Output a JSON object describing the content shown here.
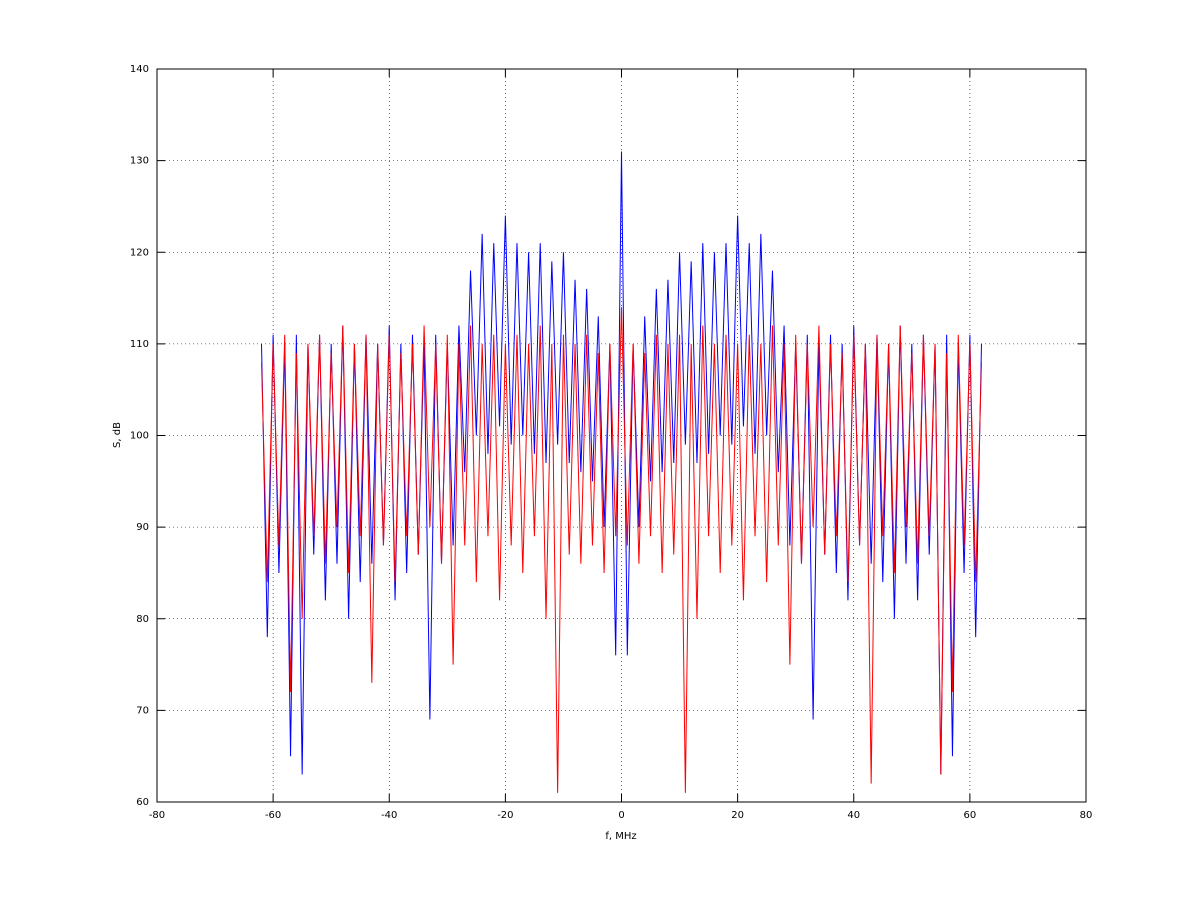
{
  "chart_data": {
    "type": "line",
    "xlabel": "f, MHz",
    "ylabel": "S, dB",
    "xlim": [
      -80,
      80
    ],
    "ylim": [
      60,
      140
    ],
    "xticks": [
      -80,
      -60,
      -40,
      -20,
      0,
      20,
      40,
      60,
      80
    ],
    "yticks": [
      60,
      70,
      80,
      90,
      100,
      110,
      120,
      130,
      140
    ],
    "grid": true,
    "x": [
      -62,
      -61,
      -60,
      -59,
      -58,
      -57,
      -56,
      -55,
      -54,
      -53,
      -52,
      -51,
      -50,
      -49,
      -48,
      -47,
      -46,
      -45,
      -44,
      -43,
      -42,
      -41,
      -40,
      -39,
      -38,
      -37,
      -36,
      -35,
      -34,
      -33,
      -32,
      -31,
      -30,
      -29,
      -28,
      -27,
      -26,
      -25,
      -24,
      -23,
      -22,
      -21,
      -20,
      -19,
      -18,
      -17,
      -16,
      -15,
      -14,
      -13,
      -12,
      -11,
      -10,
      -9,
      -8,
      -7,
      -6,
      -5,
      -4,
      -3,
      -2,
      -1,
      0,
      1,
      2,
      3,
      4,
      5,
      6,
      7,
      8,
      9,
      10,
      11,
      12,
      13,
      14,
      15,
      16,
      17,
      18,
      19,
      20,
      21,
      22,
      23,
      24,
      25,
      26,
      27,
      28,
      29,
      30,
      31,
      32,
      33,
      34,
      35,
      36,
      37,
      38,
      39,
      40,
      41,
      42,
      43,
      44,
      45,
      46,
      47,
      48,
      49,
      50,
      51,
      52,
      53,
      54,
      55,
      56,
      57,
      58,
      59,
      60,
      61,
      62
    ],
    "series": [
      {
        "color": "#0000ff",
        "values": [
          110,
          78,
          111,
          85,
          110,
          65,
          111,
          63,
          110,
          87,
          111,
          82,
          110,
          86,
          112,
          80,
          110,
          84,
          111,
          86,
          110,
          88,
          112,
          82,
          110,
          85,
          111,
          87,
          110,
          69,
          111,
          86,
          110,
          88,
          112,
          96,
          118,
          100,
          122,
          98,
          121,
          101,
          124,
          99,
          121,
          100,
          120,
          98,
          121,
          97,
          119,
          99,
          120,
          97,
          117,
          96,
          116,
          95,
          113,
          90,
          110,
          76,
          131,
          76,
          110,
          90,
          113,
          95,
          116,
          96,
          117,
          97,
          120,
          99,
          119,
          97,
          121,
          98,
          120,
          100,
          121,
          99,
          124,
          101,
          121,
          98,
          122,
          100,
          118,
          96,
          112,
          88,
          110,
          86,
          111,
          69,
          110,
          87,
          111,
          85,
          110,
          82,
          112,
          88,
          110,
          86,
          111,
          84,
          110,
          80,
          112,
          86,
          110,
          82,
          111,
          87,
          110,
          63,
          111,
          65,
          110,
          85,
          111,
          78,
          110
        ]
      },
      {
        "color": "#ff0000",
        "values": [
          108,
          84,
          110,
          88,
          111,
          72,
          109,
          80,
          110,
          89,
          111,
          86,
          109,
          90,
          112,
          85,
          110,
          89,
          111,
          73,
          110,
          88,
          111,
          84,
          109,
          89,
          110,
          87,
          112,
          90,
          110,
          86,
          111,
          75,
          110,
          88,
          112,
          84,
          110,
          89,
          111,
          82,
          110,
          88,
          111,
          85,
          110,
          89,
          112,
          80,
          110,
          61,
          111,
          87,
          110,
          86,
          111,
          88,
          109,
          85,
          110,
          89,
          114,
          88,
          110,
          86,
          109,
          89,
          111,
          85,
          110,
          87,
          111,
          61,
          110,
          80,
          112,
          89,
          110,
          85,
          111,
          88,
          110,
          82,
          111,
          89,
          110,
          84,
          112,
          88,
          110,
          75,
          111,
          86,
          110,
          90,
          112,
          87,
          110,
          89,
          109,
          84,
          111,
          88,
          110,
          62,
          111,
          89,
          110,
          85,
          112,
          90,
          109,
          86,
          111,
          89,
          110,
          63,
          109,
          72,
          111,
          88,
          110,
          84,
          108
        ]
      }
    ]
  }
}
